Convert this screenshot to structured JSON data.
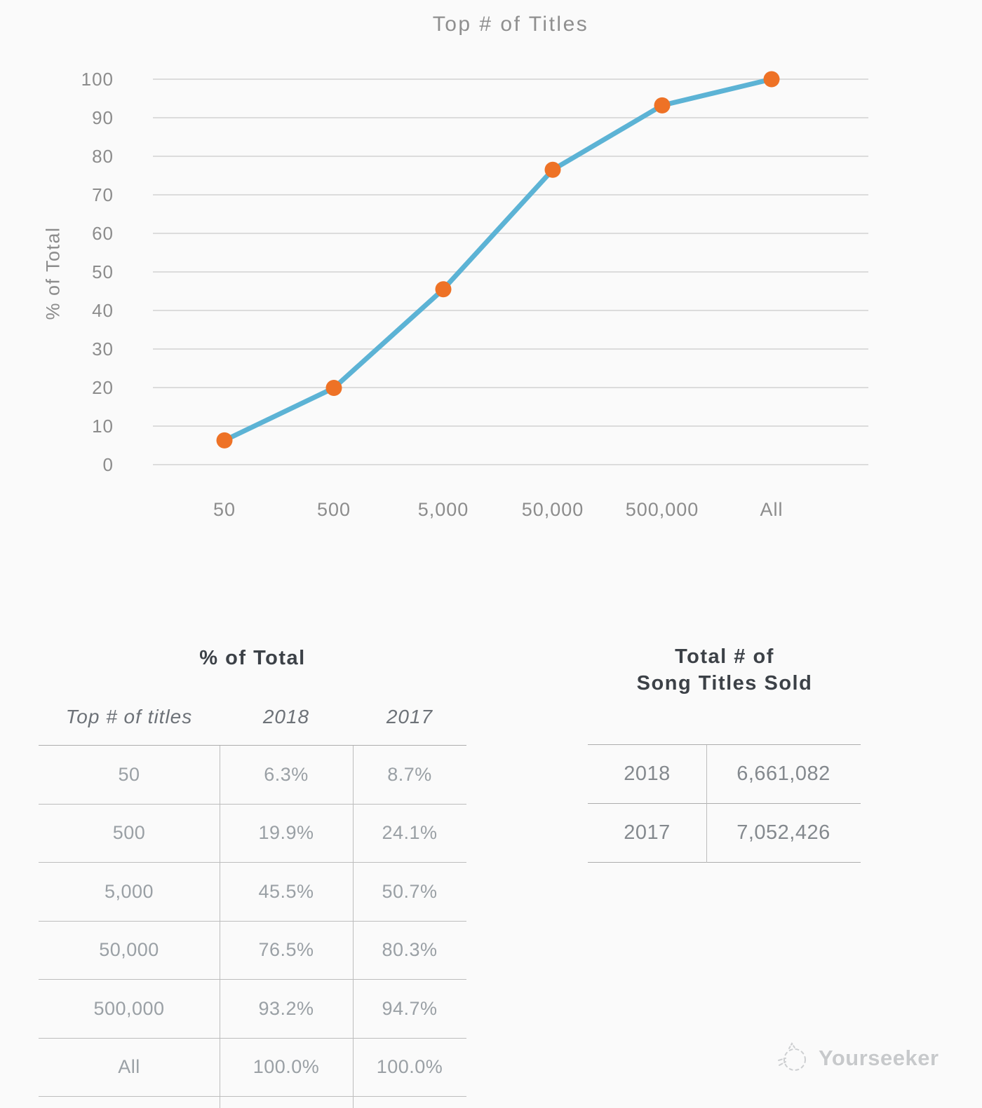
{
  "background_color": "#fafafa",
  "chart_data": {
    "type": "line",
    "title": "Top # of Titles",
    "xlabel": "",
    "ylabel": "% of Total",
    "categories": [
      "50",
      "500",
      "5,000",
      "50,000",
      "500,000",
      "All"
    ],
    "series": [
      {
        "name": "2018",
        "values": [
          6.3,
          19.9,
          45.5,
          76.5,
          93.2,
          100.0
        ]
      }
    ],
    "ylim": [
      0,
      100
    ],
    "ytick_step": 10,
    "grid": true,
    "legend_position": "none",
    "line_color": "#5cb3d5",
    "marker_color": "#ee7226",
    "grid_color": "#dcdcdc",
    "tick_label_color": "#8c8c8c"
  },
  "tables": {
    "pct_of_total": {
      "title": "% of Total",
      "columns": [
        "Top # of titles",
        "2018",
        "2017"
      ],
      "rows": [
        [
          "50",
          "6.3%",
          "8.7%"
        ],
        [
          "500",
          "19.9%",
          "24.1%"
        ],
        [
          "5,000",
          "45.5%",
          "50.7%"
        ],
        [
          "50,000",
          "76.5%",
          "80.3%"
        ],
        [
          "500,000",
          "93.2%",
          "94.7%"
        ],
        [
          "All",
          "100.0%",
          "100.0%"
        ]
      ]
    },
    "titles_sold": {
      "title_line1": "Total # of",
      "title_line2": "Song Titles Sold",
      "rows": [
        [
          "2018",
          "6,661,082"
        ],
        [
          "2017",
          "7,052,426"
        ]
      ]
    }
  },
  "watermark": {
    "label": "Yourseeker"
  }
}
